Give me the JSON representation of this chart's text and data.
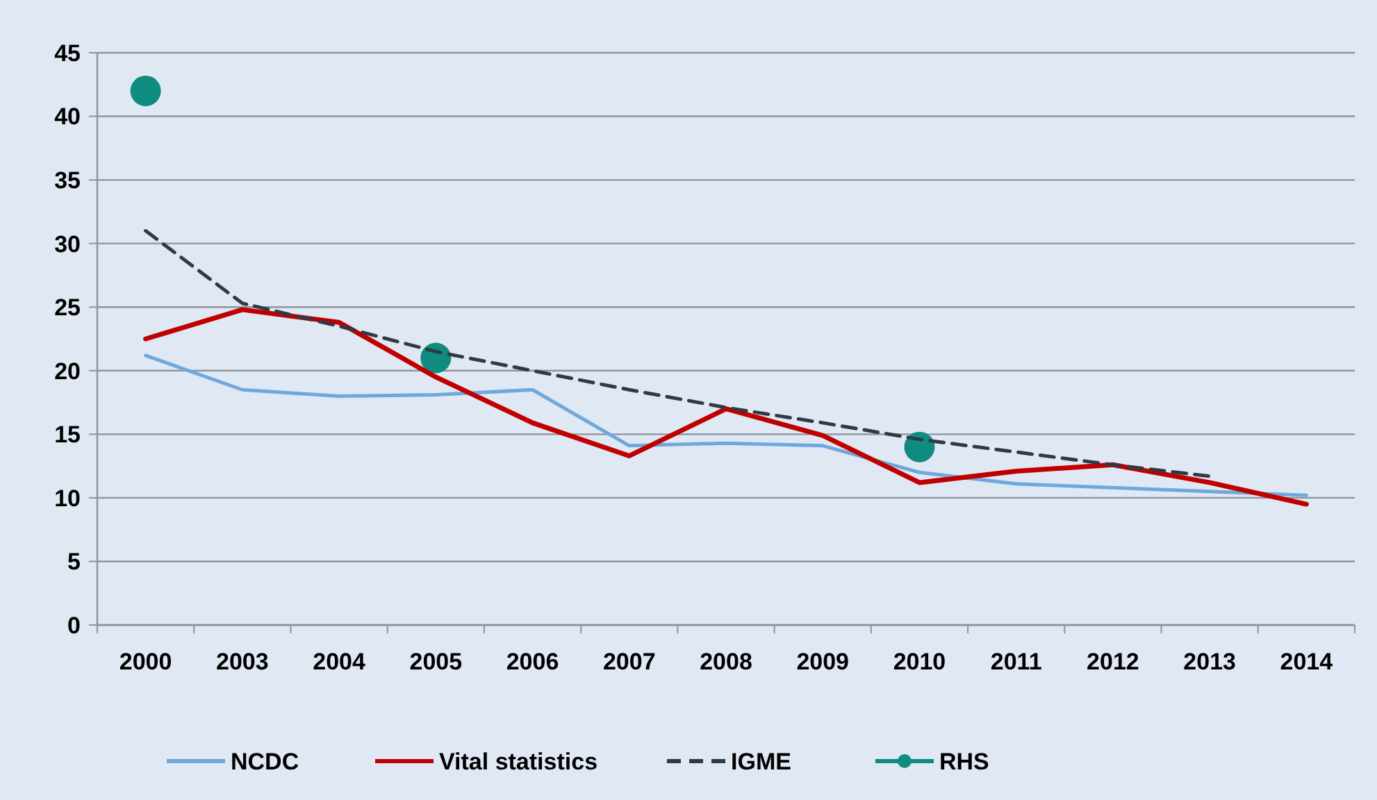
{
  "chart_data": {
    "type": "line",
    "categories": [
      "2000",
      "2003",
      "2004",
      "2005",
      "2006",
      "2007",
      "2008",
      "2009",
      "2010",
      "2011",
      "2012",
      "2013",
      "2014"
    ],
    "series": [
      {
        "name": "NCDC",
        "color": "#6fa8dc",
        "values": [
          21.2,
          18.5,
          18.0,
          18.1,
          18.5,
          14.1,
          14.3,
          14.1,
          12.0,
          11.1,
          10.8,
          10.5,
          10.2
        ]
      },
      {
        "name": "Vital statistics",
        "color": "#c00000",
        "values": [
          22.5,
          24.8,
          23.8,
          19.5,
          15.9,
          13.3,
          17.0,
          14.9,
          11.2,
          12.1,
          12.6,
          11.2,
          9.5
        ]
      },
      {
        "name": "IGME",
        "color": "#2f3a46",
        "line_style": "dashed",
        "values": [
          31,
          25.3,
          23.5,
          21.5,
          20.0,
          18.5,
          17.1,
          15.9,
          14.6,
          13.6,
          12.6,
          11.7,
          null
        ]
      },
      {
        "name": "RHS",
        "color": "#0e8c80",
        "type": "scatter",
        "marker": "circle",
        "values": [
          42,
          null,
          null,
          21,
          null,
          null,
          null,
          null,
          14,
          null,
          null,
          null,
          null
        ]
      }
    ],
    "ylim": [
      0,
      45
    ],
    "yticks": [
      0,
      5,
      10,
      15,
      20,
      25,
      30,
      35,
      40,
      45
    ],
    "grid": "y",
    "legend": "bottom"
  }
}
